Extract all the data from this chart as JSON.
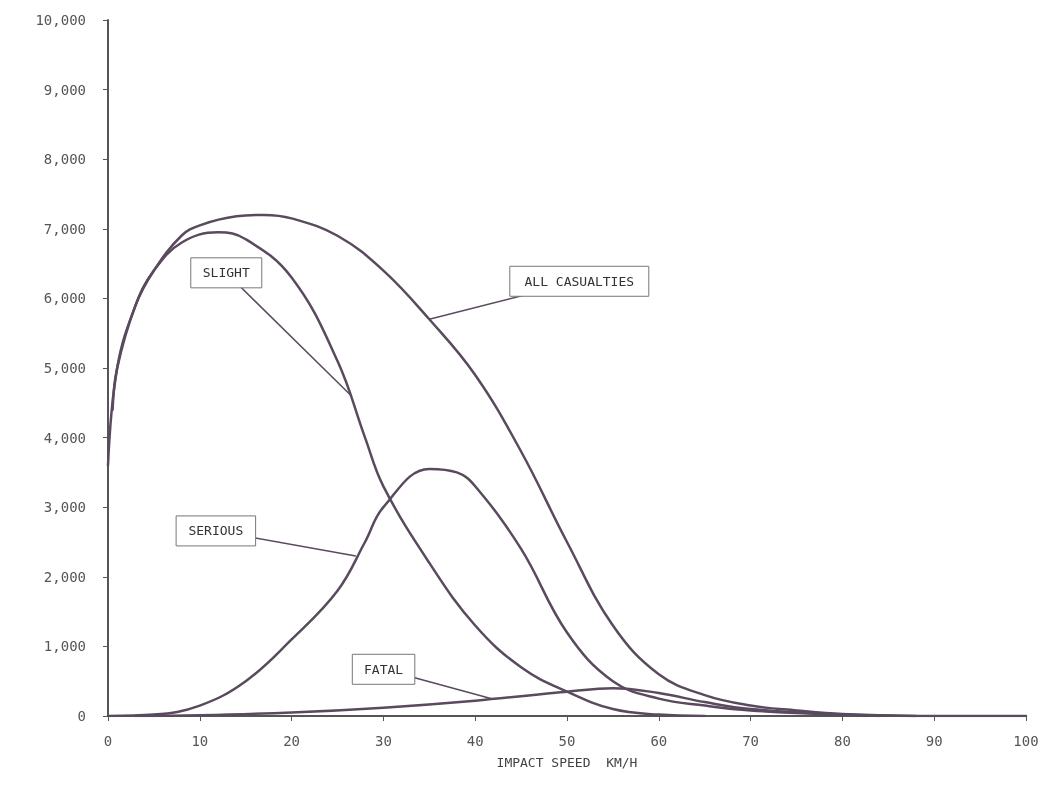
{
  "chart_data": {
    "type": "line",
    "xlabel": "IMPACT SPEED  KM/H",
    "xlim": [
      0,
      100
    ],
    "xticks": [
      0,
      10,
      20,
      30,
      40,
      50,
      60,
      70,
      80,
      90,
      100
    ],
    "ylim": [
      0,
      10000
    ],
    "yticks": [
      {
        "value": 0,
        "label": "0"
      },
      {
        "value": 1000,
        "label": "1,000"
      },
      {
        "value": 2000,
        "label": "2,000"
      },
      {
        "value": 3000,
        "label": "3,000"
      },
      {
        "value": 4000,
        "label": "4,000"
      },
      {
        "value": 5000,
        "label": "5,000"
      },
      {
        "value": 6000,
        "label": "6,000"
      },
      {
        "value": 7000,
        "label": "7,000"
      },
      {
        "value": 8000,
        "label": "8,000"
      },
      {
        "value": 9000,
        "label": "9,000"
      },
      {
        "value": 10000,
        "label": "10,000"
      }
    ],
    "grid": false,
    "marker": "none",
    "line_style": "solid",
    "series": [
      {
        "color": "#5a4a5e",
        "x": [
          0,
          1,
          3,
          5,
          8,
          10,
          14,
          17,
          20,
          25,
          30,
          35,
          40,
          45,
          50,
          55,
          60,
          65,
          70,
          75,
          80,
          90,
          100
        ],
        "values": [
          3600,
          5000,
          5900,
          6400,
          6900,
          7050,
          7180,
          7200,
          7150,
          6900,
          6400,
          5700,
          4900,
          3800,
          2500,
          1300,
          600,
          300,
          150,
          80,
          30,
          0,
          0
        ]
      },
      {
        "color": "#5a4a5e",
        "x": [
          0.5,
          1,
          3,
          5,
          8,
          12,
          15,
          20,
          25,
          28,
          30,
          35,
          40,
          45,
          50,
          55,
          60,
          65
        ],
        "values": [
          4400,
          5000,
          5900,
          6400,
          6800,
          6950,
          6850,
          6300,
          5100,
          4000,
          3300,
          2200,
          1300,
          700,
          350,
          100,
          20,
          0
        ]
      },
      {
        "color": "#5a4a5e",
        "x": [
          0,
          5,
          10,
          15,
          20,
          25,
          28,
          30,
          35,
          38,
          40,
          45,
          50,
          55,
          60,
          65,
          70,
          80,
          88
        ],
        "values": [
          0,
          20,
          150,
          500,
          1100,
          1800,
          2500,
          3000,
          3550,
          3500,
          3300,
          2400,
          1200,
          500,
          250,
          150,
          80,
          20,
          0
        ]
      },
      {
        "color": "#5a4a5e",
        "x": [
          3,
          10,
          20,
          30,
          40,
          50,
          55,
          60,
          65,
          70,
          80,
          84
        ],
        "values": [
          0,
          10,
          50,
          120,
          220,
          350,
          400,
          330,
          200,
          100,
          20,
          0
        ]
      }
    ],
    "annotations": [
      {
        "text": "ALL CASUALTIES",
        "x": 35,
        "y": 5700
      },
      {
        "text": "SLIGHT",
        "x": 26.5,
        "y": 4600
      },
      {
        "text": "SERIOUS",
        "x": 27,
        "y": 2300
      },
      {
        "text": "FATAL",
        "x": 42,
        "y": 240
      }
    ]
  }
}
